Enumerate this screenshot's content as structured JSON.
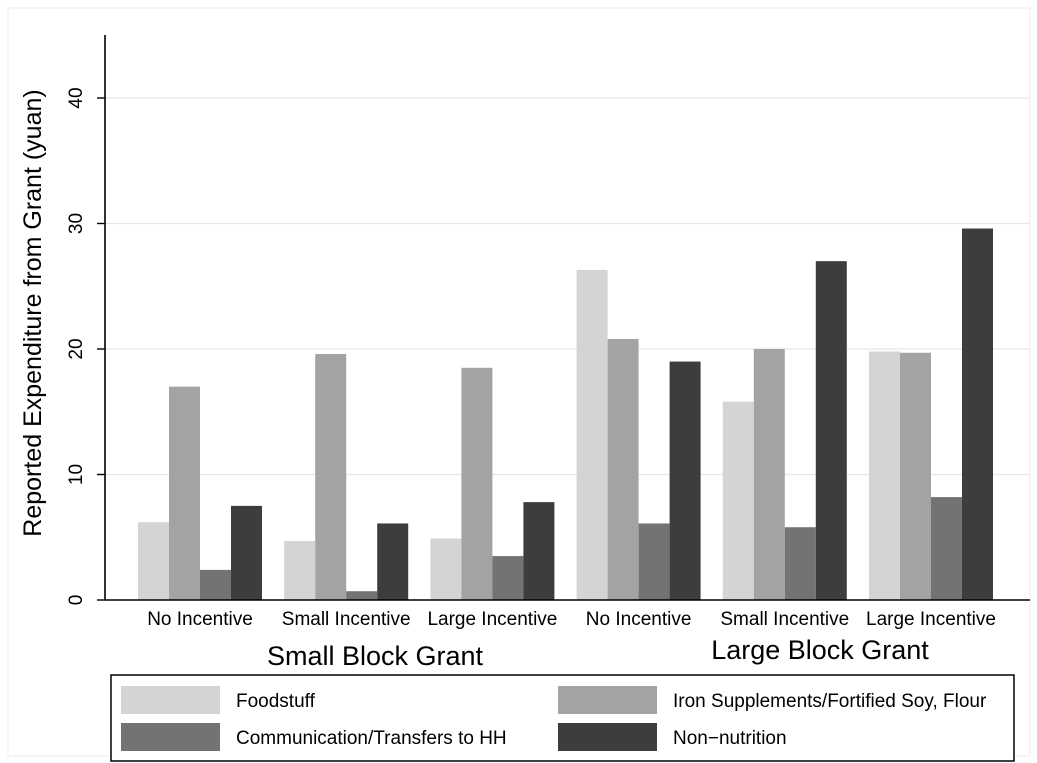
{
  "chart_data": {
    "type": "bar",
    "ylabel": "Reported Expenditure from Grant (yuan)",
    "ylim": [
      0,
      45
    ],
    "yticks": [
      "0",
      "10",
      "20",
      "30",
      "40"
    ],
    "grid": "horizontal",
    "legend_position": "bottom",
    "groups": [
      {
        "label": "Small Block Grant",
        "categories": [
          "No Incentive",
          "Small Incentive",
          "Large Incentive"
        ]
      },
      {
        "label": "Large Block Grant",
        "categories": [
          "No Incentive",
          "Small Incentive",
          "Large Incentive"
        ]
      }
    ],
    "series": [
      {
        "name": "Foodstuff",
        "color": "#d4d4d4",
        "values": [
          6.2,
          4.7,
          4.9,
          26.3,
          15.8,
          19.8
        ]
      },
      {
        "name": "Iron Supplements/Fortified Soy, Flour",
        "color": "#a3a3a3",
        "values": [
          17.0,
          19.6,
          18.5,
          20.8,
          20.0,
          19.7
        ]
      },
      {
        "name": "Communication/Transfers to HH",
        "color": "#737373",
        "values": [
          2.4,
          0.7,
          3.5,
          6.1,
          5.8,
          8.2
        ]
      },
      {
        "name": "Non−nutrition",
        "color": "#3d3d3d",
        "values": [
          7.5,
          6.1,
          7.8,
          19.0,
          27.0,
          29.6
        ]
      }
    ]
  }
}
